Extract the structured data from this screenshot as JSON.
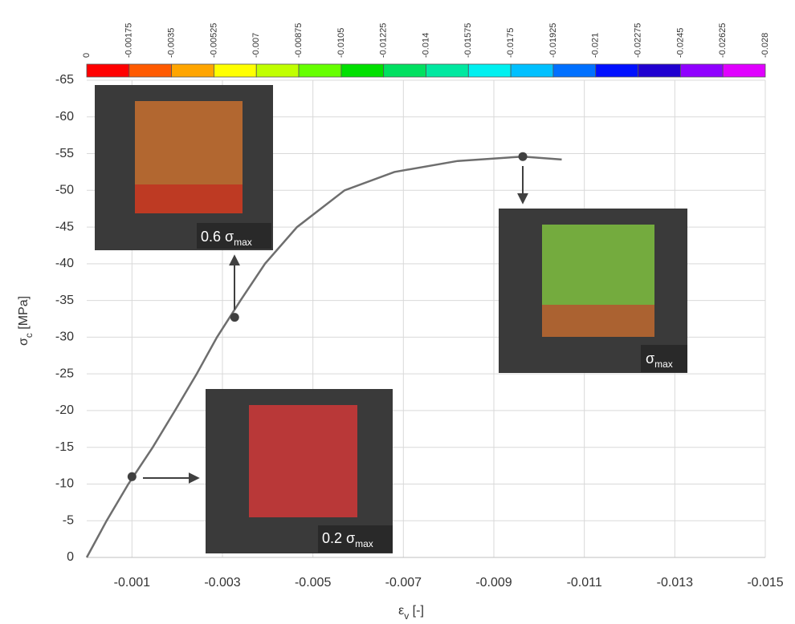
{
  "chart_data": {
    "type": "line",
    "x_label": {
      "text": "ε",
      "sub": "v",
      "suffix": " [-]"
    },
    "y_label": {
      "text": "σ",
      "sub": "c",
      "suffix": " [MPa]"
    },
    "xlim": [
      0,
      -0.015
    ],
    "ylim": [
      0,
      -65
    ],
    "xticks": [
      -0.001,
      -0.003,
      -0.005,
      -0.007,
      -0.009,
      -0.011,
      -0.013,
      -0.015
    ],
    "yticks": [
      0,
      -5,
      -10,
      -15,
      -20,
      -25,
      -30,
      -35,
      -40,
      -45,
      -50,
      -55,
      -60,
      -65
    ],
    "grid": true,
    "series": [
      {
        "color": "#6e6e6e",
        "x": [
          0,
          -0.00044,
          -0.00092,
          -0.00146,
          -0.00195,
          -0.00243,
          -0.00288,
          -0.0034,
          -0.00394,
          -0.00465,
          -0.0057,
          -0.0068,
          -0.0082,
          -0.00964,
          -0.0105
        ],
        "values": [
          0,
          -5,
          -10,
          -15,
          -20,
          -25,
          -30,
          -35,
          -40,
          -45,
          -50,
          -52.5,
          -54,
          -54.6,
          -54.2
        ]
      }
    ],
    "markers": {
      "color": "#404040",
      "x": [
        -0.001,
        -0.00327,
        -0.00964
      ],
      "values": [
        -11,
        -32.7,
        -54.6
      ]
    },
    "annotations": [
      {
        "text": "0.6 σ",
        "sub": "max"
      },
      {
        "text": "σ",
        "sub": "max"
      },
      {
        "text": "0.2 σ",
        "sub": "max"
      }
    ],
    "colorbar": {
      "ticks": [
        0,
        -0.00175,
        -0.0035,
        -0.00525,
        -0.007,
        -0.00875,
        -0.0105,
        -0.01225,
        -0.014,
        -0.01575,
        -0.0175,
        -0.01925,
        -0.021,
        -0.02275,
        -0.0245,
        -0.02625,
        -0.028
      ],
      "colors": [
        "#ff0000",
        "#ff5a00",
        "#ffa500",
        "#ffff00",
        "#c0ff00",
        "#66ff00",
        "#00e000",
        "#00e060",
        "#00e8a0",
        "#00f0f0",
        "#00c0ff",
        "#0070ff",
        "#0010ff",
        "#2000d0",
        "#9000ff",
        "#e000ff"
      ]
    }
  }
}
